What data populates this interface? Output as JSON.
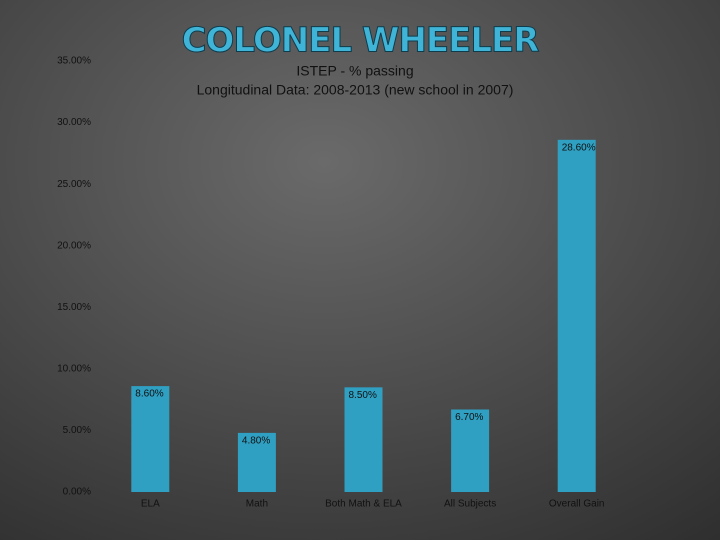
{
  "chart_data": {
    "type": "bar",
    "title": "COLONEL WHEELER",
    "subtitle": [
      "ISTEP - % passing",
      "Longitudinal Data: 2008-2013   (new school in 2007)"
    ],
    "categories": [
      "ELA",
      "Math",
      "Both Math & ELA",
      "All Subjects",
      "Overall Gain"
    ],
    "values": [
      8.6,
      4.8,
      8.5,
      6.7,
      28.6
    ],
    "value_labels": [
      "8.60%",
      "4.80%",
      "8.50%",
      "6.70%",
      "28.60%"
    ],
    "color": "#2f9fc2",
    "ylim": [
      0,
      35
    ],
    "yticks": [
      {
        "value": 0,
        "label": "0.00%"
      },
      {
        "value": 5,
        "label": "5.00%"
      },
      {
        "value": 10,
        "label": "10.00%"
      },
      {
        "value": 15,
        "label": "15.00%"
      },
      {
        "value": 20,
        "label": "20.00%"
      },
      {
        "value": 25,
        "label": "25.00%"
      },
      {
        "value": 30,
        "label": "30.00%"
      },
      {
        "value": 35,
        "label": "35.00%"
      }
    ]
  }
}
